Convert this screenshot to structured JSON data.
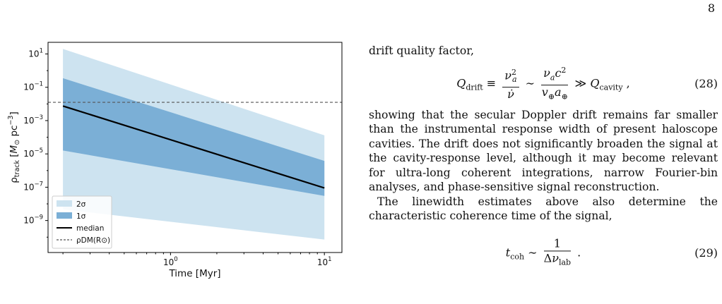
{
  "page_number": "8",
  "chart_data": {
    "type": "area",
    "xlabel": "Time [Myr]",
    "ylabel_html": "ρtrack [M⊙ pc⁻³]",
    "x_scale": "log",
    "y_scale": "log",
    "xlim": [
      0.16,
      13
    ],
    "ylim": [
      1.2e-11,
      50
    ],
    "x_ticks": [
      {
        "value": 1,
        "label": "10^0"
      },
      {
        "value": 10,
        "label": "10^1"
      }
    ],
    "y_ticks": [
      {
        "value": 1e-09,
        "label": "10^-9"
      },
      {
        "value": 1e-07,
        "label": "10^-7"
      },
      {
        "value": 1e-05,
        "label": "10^-5"
      },
      {
        "value": 0.001,
        "label": "10^-3"
      },
      {
        "value": 0.1,
        "label": "10^-1"
      },
      {
        "value": 10,
        "label": "10^1"
      }
    ],
    "series": [
      {
        "name": "2σ",
        "kind": "band",
        "color": "#cde3f0",
        "x": [
          0.2,
          10
        ],
        "lower": [
          4.7e-09,
          7.2e-11
        ],
        "upper": [
          20,
          0.00013
        ]
      },
      {
        "name": "1σ",
        "kind": "band",
        "color": "#7bafd6",
        "x": [
          0.2,
          10
        ],
        "lower": [
          1.6e-05,
          3e-08
        ],
        "upper": [
          0.35,
          3.8e-06
        ]
      },
      {
        "name": "median",
        "kind": "line",
        "color": "#000000",
        "x": [
          0.2,
          10
        ],
        "y": [
          0.0075,
          9e-08
        ]
      },
      {
        "name": "ρDM(R⊙)",
        "kind": "hline",
        "color": "#555555",
        "y": 0.0125
      }
    ],
    "legend": {
      "position": "lower-left",
      "entries": [
        "2σ",
        "1σ",
        "median",
        "ρDM(R⊙)"
      ]
    },
    "grid": false
  },
  "text": {
    "intro": "drift quality factor,",
    "eq28_number": "(28)",
    "para1": "showing that the secular Doppler drift remains far smaller than the instrumental response width of present haloscope cavities. The drift does not significantly broaden the signal at the cavity-response level, although it may become relevant for ultra-long coherent integrations, narrow Fourier-bin analyses, and phase-sensitive signal reconstruction.",
    "para2": "The linewidth estimates above also determine the characteristic coherence time of the signal,",
    "eq29_number": "(29)"
  }
}
